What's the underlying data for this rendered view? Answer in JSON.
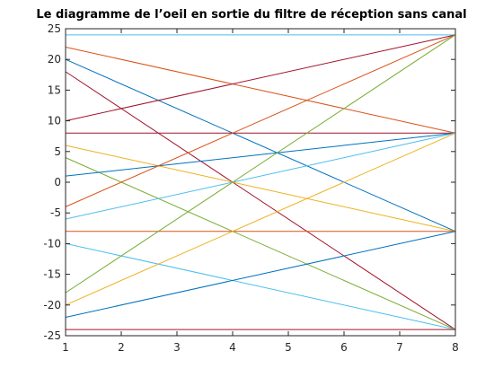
{
  "chart_data": {
    "type": "line",
    "title": "Le diagramme de l’oeil en sortie du filtre de réception sans canal",
    "xlabel": "",
    "ylabel": "",
    "xlim": [
      1,
      8
    ],
    "ylim": [
      -25,
      25
    ],
    "xticks": [
      1,
      2,
      3,
      4,
      5,
      6,
      7,
      8
    ],
    "yticks": [
      -25,
      -20,
      -15,
      -10,
      -5,
      0,
      5,
      10,
      15,
      20,
      25
    ],
    "grid": false,
    "series": [
      {
        "x": [
          1,
          8
        ],
        "y": [
          24,
          24
        ],
        "color": "#4DBEEE"
      },
      {
        "x": [
          1,
          8
        ],
        "y": [
          22,
          8
        ],
        "color": "#D95319"
      },
      {
        "x": [
          1,
          8
        ],
        "y": [
          20,
          -8
        ],
        "color": "#0072BD"
      },
      {
        "x": [
          1,
          8
        ],
        "y": [
          18,
          -24
        ],
        "color": "#A2142F"
      },
      {
        "x": [
          1,
          8
        ],
        "y": [
          10,
          24
        ],
        "color": "#A2142F"
      },
      {
        "x": [
          1,
          8
        ],
        "y": [
          8,
          8
        ],
        "color": "#A2142F"
      },
      {
        "x": [
          1,
          8
        ],
        "y": [
          6,
          -8
        ],
        "color": "#EDB120"
      },
      {
        "x": [
          1,
          8
        ],
        "y": [
          4,
          -24
        ],
        "color": "#77AC30"
      },
      {
        "x": [
          1,
          8
        ],
        "y": [
          1,
          8
        ],
        "color": "#0072BD"
      },
      {
        "x": [
          1,
          8
        ],
        "y": [
          -4,
          24
        ],
        "color": "#D95319"
      },
      {
        "x": [
          1,
          8
        ],
        "y": [
          -6,
          8
        ],
        "color": "#4DBEEE"
      },
      {
        "x": [
          1,
          8
        ],
        "y": [
          -8,
          -8
        ],
        "color": "#D95319"
      },
      {
        "x": [
          1,
          8
        ],
        "y": [
          -10,
          -24
        ],
        "color": "#4DBEEE"
      },
      {
        "x": [
          1,
          8
        ],
        "y": [
          -18,
          24
        ],
        "color": "#77AC30"
      },
      {
        "x": [
          1,
          8
        ],
        "y": [
          -20,
          8
        ],
        "color": "#EDB120"
      },
      {
        "x": [
          1,
          8
        ],
        "y": [
          -22,
          -8
        ],
        "color": "#0072BD"
      },
      {
        "x": [
          1,
          8
        ],
        "y": [
          -24,
          -24
        ],
        "color": "#A2142F"
      }
    ]
  }
}
